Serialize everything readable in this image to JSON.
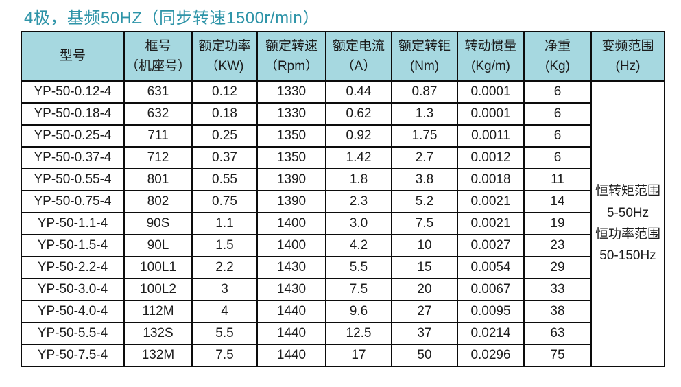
{
  "title": "4极，基频50HZ（同步转速1500r/min）",
  "colors": {
    "title_text": "#2e94a8",
    "header_bg": "#a6d8e0",
    "border": "#0c0c0c",
    "body_bg": "#ffffff"
  },
  "table": {
    "headers": [
      {
        "line1": "型号",
        "line2": ""
      },
      {
        "line1": "框号",
        "line2": "（机座号）"
      },
      {
        "line1": "额定功率",
        "line2": "（KW)"
      },
      {
        "line1": "额定转速",
        "line2": "（Rpm）"
      },
      {
        "line1": "额定电流",
        "line2": "（A）"
      },
      {
        "line1": "额定转钜",
        "line2": "(Nm)"
      },
      {
        "line1": "转动惯量",
        "line2": "(Kg/m)"
      },
      {
        "line1": "净重",
        "line2": "(Kg)"
      },
      {
        "line1": "变频范围",
        "line2": "(Hz)"
      }
    ],
    "rows": [
      [
        "YP-50-0.12-4",
        "631",
        "0.12",
        "1330",
        "0.44",
        "0.87",
        "0.0001",
        "6"
      ],
      [
        "YP-50-0.18-4",
        "632",
        "0.18",
        "1330",
        "0.62",
        "1.3",
        "0.0001",
        "6"
      ],
      [
        "YP-50-0.25-4",
        "711",
        "0.25",
        "1350",
        "0.92",
        "1.75",
        "0.0011",
        "6"
      ],
      [
        "YP-50-0.37-4",
        "712",
        "0.37",
        "1350",
        "1.42",
        "2.7",
        "0.0012",
        "6"
      ],
      [
        "YP-50-0.55-4",
        "801",
        "0.55",
        "1390",
        "1.8",
        "3.8",
        "0.0018",
        "11"
      ],
      [
        "YP-50-0.75-4",
        "802",
        "0.75",
        "1390",
        "2.3",
        "5.2",
        "0.0021",
        "14"
      ],
      [
        "YP-50-1.1-4",
        "90S",
        "1.1",
        "1400",
        "3.0",
        "7.5",
        "0.0021",
        "19"
      ],
      [
        "YP-50-1.5-4",
        "90L",
        "1.5",
        "1400",
        "4.2",
        "10",
        "0.0027",
        "23"
      ],
      [
        "YP-50-2.2-4",
        "100L1",
        "2.2",
        "1430",
        "5.5",
        "15",
        "0.0054",
        "29"
      ],
      [
        "YP-50-3.0-4",
        "100L2",
        "3",
        "1430",
        "7.5",
        "20",
        "0.0067",
        "33"
      ],
      [
        "YP-50-4.0-4",
        "112M",
        "4",
        "1440",
        "9.6",
        "27",
        "0.0095",
        "38"
      ],
      [
        "YP-50-5.5-4",
        "132S",
        "5.5",
        "1440",
        "12.5",
        "37",
        "0.0214",
        "63"
      ],
      [
        "YP-50-7.5-4",
        "132M",
        "7.5",
        "1440",
        "17",
        "50",
        "0.0296",
        "75"
      ]
    ],
    "range_note_lines": [
      "恒转矩范围",
      "5-50Hz",
      "恒功率范围",
      "50-150Hz"
    ]
  }
}
